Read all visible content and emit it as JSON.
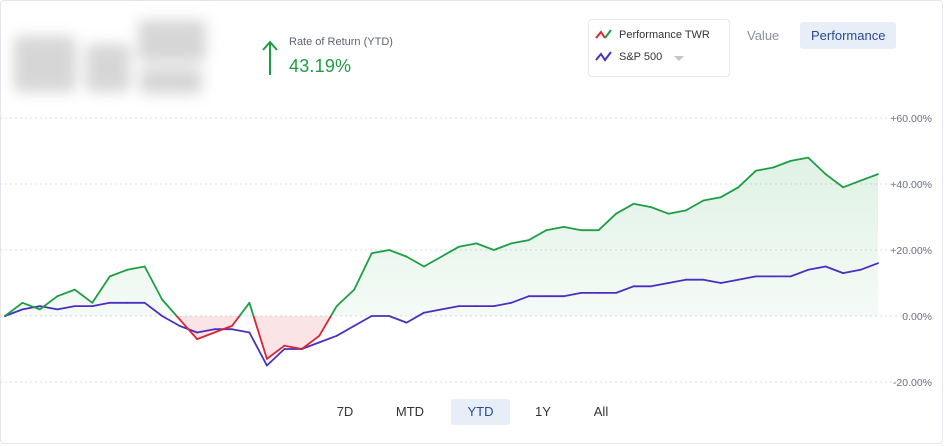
{
  "header": {
    "rate_label": "Rate of Return (YTD)",
    "rate_value": "43.19%",
    "rate_color": "#1e9e44",
    "direction_icon": "arrow-up-icon"
  },
  "legend": {
    "items": [
      {
        "label": "Performance TWR",
        "icon": "trend-line-icon",
        "colors": [
          "#d9252f",
          "#1e9e44"
        ]
      },
      {
        "label": "S&P 500",
        "icon": "trend-line-icon",
        "colors": [
          "#4a2fc0"
        ],
        "dropdown": true
      }
    ]
  },
  "view_toggle": {
    "value_label": "Value",
    "performance_label": "Performance",
    "selected": "Performance"
  },
  "ranges": {
    "items": [
      "7D",
      "MTD",
      "YTD",
      "1Y",
      "All"
    ],
    "selected": "YTD"
  },
  "chart_data": {
    "type": "line",
    "title": "",
    "xlabel": "",
    "ylabel": "",
    "ylim": [
      -20,
      60
    ],
    "yticks": [
      60,
      40,
      20,
      0,
      -20
    ],
    "ytick_labels": [
      "+60.00%",
      "+40.00%",
      "+20.00%",
      "0.00%",
      "-20.00%"
    ],
    "grid": true,
    "x": [
      0,
      2,
      4,
      6,
      8,
      10,
      12,
      14,
      16,
      18,
      20,
      22,
      24,
      26,
      28,
      30,
      32,
      34,
      36,
      38,
      40,
      42,
      44,
      46,
      48,
      50,
      52,
      54,
      56,
      58,
      60,
      62,
      64,
      66,
      68,
      70,
      72,
      74,
      76,
      78,
      80,
      82,
      84,
      86,
      88,
      90,
      92,
      94,
      96,
      98,
      100
    ],
    "series": [
      {
        "name": "Performance TWR",
        "positive_color": "#1e9e44",
        "negative_color": "#d9252f",
        "values": [
          0,
          4,
          2,
          6,
          8,
          4,
          12,
          14,
          15,
          5,
          -1,
          -7,
          -5,
          -3,
          4,
          -13,
          -9,
          -10,
          -6,
          3,
          8,
          19,
          20,
          18,
          15,
          18,
          21,
          22,
          20,
          22,
          23,
          26,
          27,
          26,
          26,
          31,
          34,
          33,
          31,
          32,
          35,
          36,
          39,
          44,
          45,
          47,
          48,
          43,
          39,
          41,
          43
        ]
      },
      {
        "name": "S&P 500",
        "color": "#4a2fc0",
        "values": [
          0,
          2,
          3,
          2,
          3,
          3,
          4,
          4,
          4,
          0,
          -3,
          -5,
          -4,
          -4,
          -5,
          -15,
          -10,
          -10,
          -8,
          -6,
          -3,
          0,
          0,
          -2,
          1,
          2,
          3,
          3,
          3,
          4,
          6,
          6,
          6,
          7,
          7,
          7,
          9,
          9,
          10,
          11,
          11,
          10,
          11,
          12,
          12,
          12,
          14,
          15,
          13,
          14,
          16
        ]
      }
    ]
  }
}
